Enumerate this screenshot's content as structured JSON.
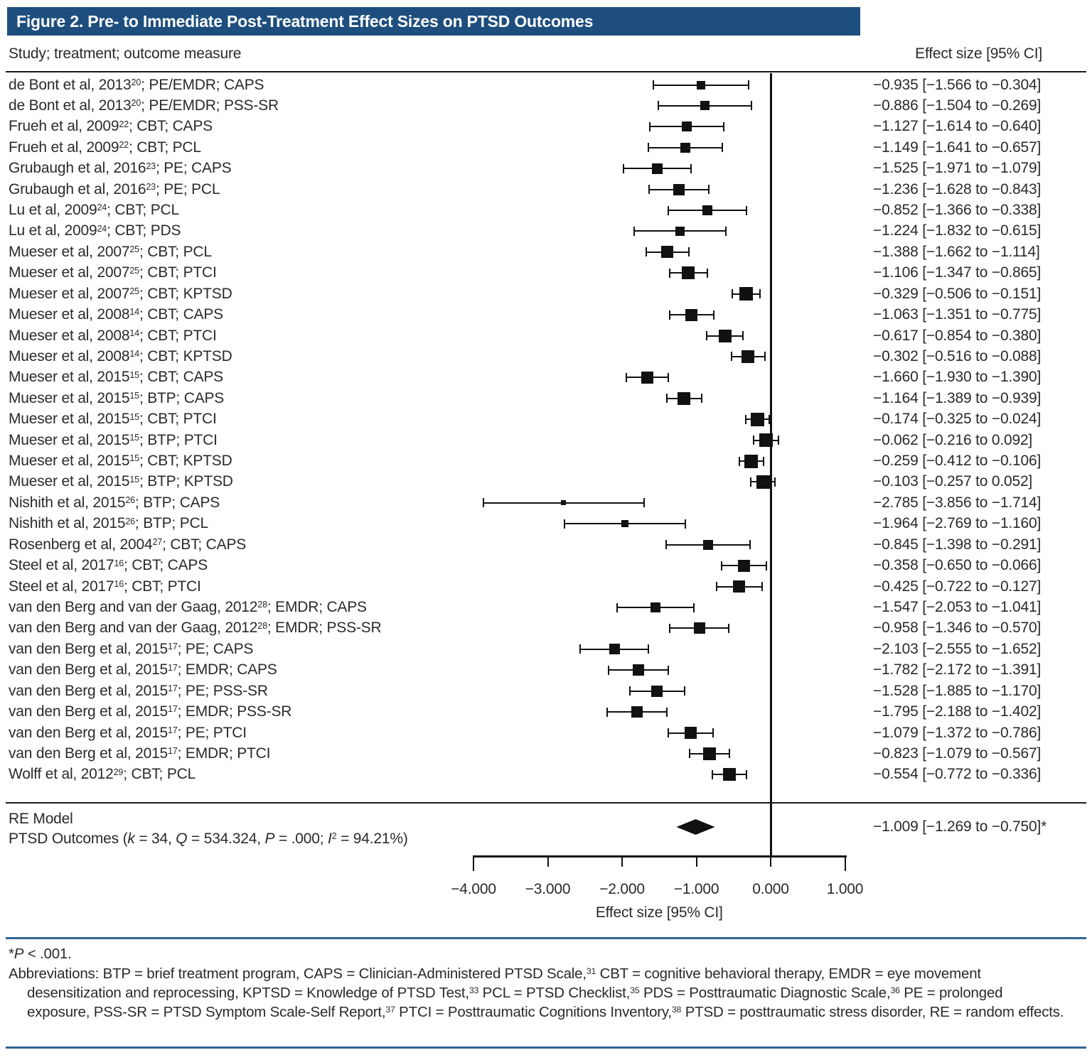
{
  "title": "Figure 2. Pre- to Immediate Post-Treatment Effect Sizes on PTSD Outcomes",
  "header": {
    "left": "Study; treatment; outcome measure",
    "right": "Effect size [95% CI]"
  },
  "colors": {
    "title_bg": "#1d4e7d",
    "rule_blue": "#2f6593",
    "ink": "#2b2a29",
    "plot_black": "#111111"
  },
  "chart_data": {
    "type": "forest",
    "xlabel": "Effect size [95% CI]",
    "x_ticks": [
      -4,
      -3,
      -2,
      -1,
      0,
      1
    ],
    "x_tick_labels": [
      "−4.000",
      "−3.000",
      "−2.000",
      "−1.000",
      "0.000",
      "1.000"
    ],
    "xlim": [
      -4.6,
      1.3
    ],
    "zero_reference_line": 0,
    "studies": [
      {
        "pre": "de Bont et al, 2013",
        "sup": "20",
        "post": "; PE/EMDR; CAPS",
        "est": -0.935,
        "lo": -1.566,
        "hi": -0.304,
        "ci": "−0.935 [−1.566 to −0.304]"
      },
      {
        "pre": "de Bont et al, 2013",
        "sup": "20",
        "post": "; PE/EMDR; PSS-SR",
        "est": -0.886,
        "lo": -1.504,
        "hi": -0.269,
        "ci": "−0.886 [−1.504 to −0.269]"
      },
      {
        "pre": "Frueh et al, 2009",
        "sup": "22",
        "post": "; CBT; CAPS",
        "est": -1.127,
        "lo": -1.614,
        "hi": -0.64,
        "ci": "−1.127 [−1.614 to −0.640]"
      },
      {
        "pre": "Frueh et al, 2009",
        "sup": "22",
        "post": "; CBT; PCL",
        "est": -1.149,
        "lo": -1.641,
        "hi": -0.657,
        "ci": "−1.149 [−1.641 to −0.657]"
      },
      {
        "pre": "Grubaugh et al, 2016",
        "sup": "23",
        "post": "; PE; CAPS",
        "est": -1.525,
        "lo": -1.971,
        "hi": -1.079,
        "ci": "−1.525 [−1.971 to −1.079]"
      },
      {
        "pre": "Grubaugh et al, 2016",
        "sup": "23",
        "post": "; PE; PCL",
        "est": -1.236,
        "lo": -1.628,
        "hi": -0.843,
        "ci": "−1.236 [−1.628 to −0.843]"
      },
      {
        "pre": "Lu et al, 2009",
        "sup": "24",
        "post": "; CBT; PCL",
        "est": -0.852,
        "lo": -1.366,
        "hi": -0.338,
        "ci": "−0.852 [−1.366 to −0.338]"
      },
      {
        "pre": "Lu et al, 2009",
        "sup": "24",
        "post": "; CBT; PDS",
        "est": -1.224,
        "lo": -1.832,
        "hi": -0.615,
        "ci": "−1.224 [−1.832 to −0.615]"
      },
      {
        "pre": "Mueser et al, 2007",
        "sup": "25",
        "post": "; CBT; PCL",
        "est": -1.388,
        "lo": -1.662,
        "hi": -1.114,
        "ci": "−1.388 [−1.662 to −1.114]"
      },
      {
        "pre": "Mueser et al, 2007",
        "sup": "25",
        "post": "; CBT; PTCI",
        "est": -1.106,
        "lo": -1.347,
        "hi": -0.865,
        "ci": "−1.106 [−1.347 to −0.865]"
      },
      {
        "pre": "Mueser et al, 2007",
        "sup": "25",
        "post": "; CBT; KPTSD",
        "est": -0.329,
        "lo": -0.506,
        "hi": -0.151,
        "ci": "−0.329 [−0.506 to −0.151]"
      },
      {
        "pre": "Mueser et al, 2008",
        "sup": "14",
        "post": "; CBT; CAPS",
        "est": -1.063,
        "lo": -1.351,
        "hi": -0.775,
        "ci": "−1.063 [−1.351 to −0.775]"
      },
      {
        "pre": "Mueser et al, 2008",
        "sup": "14",
        "post": "; CBT; PTCI",
        "est": -0.617,
        "lo": -0.854,
        "hi": -0.38,
        "ci": "−0.617 [−0.854 to −0.380]"
      },
      {
        "pre": "Mueser et al, 2008",
        "sup": "14",
        "post": "; CBT; KPTSD",
        "est": -0.302,
        "lo": -0.516,
        "hi": -0.088,
        "ci": "−0.302 [−0.516 to −0.088]"
      },
      {
        "pre": "Mueser et al, 2015",
        "sup": "15",
        "post": "; CBT; CAPS",
        "est": -1.66,
        "lo": -1.93,
        "hi": -1.39,
        "ci": "−1.660 [−1.930 to −1.390]"
      },
      {
        "pre": "Mueser et al, 2015",
        "sup": "15",
        "post": "; BTP; CAPS",
        "est": -1.164,
        "lo": -1.389,
        "hi": -0.939,
        "ci": "−1.164 [−1.389 to −0.939]"
      },
      {
        "pre": "Mueser et al, 2015",
        "sup": "15",
        "post": "; CBT; PTCI",
        "est": -0.174,
        "lo": -0.325,
        "hi": -0.024,
        "ci": "−0.174 [−0.325 to −0.024]"
      },
      {
        "pre": "Mueser et al, 2015",
        "sup": "15",
        "post": "; BTP; PTCI",
        "est": -0.062,
        "lo": -0.216,
        "hi": 0.092,
        "ci": "−0.062 [−0.216 to 0.092]"
      },
      {
        "pre": "Mueser et al, 2015",
        "sup": "15",
        "post": "; CBT; KPTSD",
        "est": -0.259,
        "lo": -0.412,
        "hi": -0.106,
        "ci": "−0.259 [−0.412 to −0.106]"
      },
      {
        "pre": "Mueser et al, 2015",
        "sup": "15",
        "post": "; BTP; KPTSD",
        "est": -0.103,
        "lo": -0.257,
        "hi": 0.052,
        "ci": "−0.103 [−0.257 to 0.052]"
      },
      {
        "pre": "Nishith et al, 2015",
        "sup": "26",
        "post": "; BTP; CAPS",
        "est": -2.785,
        "lo": -3.856,
        "hi": -1.714,
        "ci": "−2.785 [−3.856 to −1.714]"
      },
      {
        "pre": "Nishith et al, 2015",
        "sup": "26",
        "post": "; BTP; PCL",
        "est": -1.964,
        "lo": -2.769,
        "hi": -1.16,
        "ci": "−1.964 [−2.769 to −1.160]"
      },
      {
        "pre": "Rosenberg et al, 2004",
        "sup": "27",
        "post": "; CBT; CAPS",
        "est": -0.845,
        "lo": -1.398,
        "hi": -0.291,
        "ci": "−0.845 [−1.398 to −0.291]"
      },
      {
        "pre": "Steel et al, 2017",
        "sup": "16",
        "post": "; CBT; CAPS",
        "est": -0.358,
        "lo": -0.65,
        "hi": -0.066,
        "ci": "−0.358 [−0.650 to −0.066]"
      },
      {
        "pre": "Steel et al, 2017",
        "sup": "16",
        "post": "; CBT; PTCI",
        "est": -0.425,
        "lo": -0.722,
        "hi": -0.127,
        "ci": "−0.425 [−0.722 to −0.127]"
      },
      {
        "pre": "van den Berg and van der Gaag, 2012",
        "sup": "28",
        "post": "; EMDR; CAPS",
        "est": -1.547,
        "lo": -2.053,
        "hi": -1.041,
        "ci": "−1.547 [−2.053 to −1.041]"
      },
      {
        "pre": "van den Berg and van der Gaag, 2012",
        "sup": "28",
        "post": "; EMDR; PSS-SR",
        "est": -0.958,
        "lo": -1.346,
        "hi": -0.57,
        "ci": "−0.958 [−1.346 to −0.570]"
      },
      {
        "pre": "van den Berg et al, 2015",
        "sup": "17",
        "post": "; PE; CAPS",
        "est": -2.103,
        "lo": -2.555,
        "hi": -1.652,
        "ci": "−2.103 [−2.555 to −1.652]"
      },
      {
        "pre": "van den Berg et al, 2015",
        "sup": "17",
        "post": "; EMDR; CAPS",
        "est": -1.782,
        "lo": -2.172,
        "hi": -1.391,
        "ci": "−1.782 [−2.172 to −1.391]"
      },
      {
        "pre": "van den Berg et al, 2015",
        "sup": "17",
        "post": "; PE; PSS-SR",
        "est": -1.528,
        "lo": -1.885,
        "hi": -1.17,
        "ci": "−1.528 [−1.885 to −1.170]"
      },
      {
        "pre": "van den Berg et al, 2015",
        "sup": "17",
        "post": "; EMDR; PSS-SR",
        "est": -1.795,
        "lo": -2.188,
        "hi": -1.402,
        "ci": "−1.795 [−2.188 to −1.402]"
      },
      {
        "pre": "van den Berg et al, 2015",
        "sup": "17",
        "post": "; PE; PTCI",
        "est": -1.079,
        "lo": -1.372,
        "hi": -0.786,
        "ci": "−1.079 [−1.372 to −0.786]"
      },
      {
        "pre": "van den Berg et al, 2015",
        "sup": "17",
        "post": "; EMDR; PTCI",
        "est": -0.823,
        "lo": -1.079,
        "hi": -0.567,
        "ci": "−0.823 [−1.079 to −0.567]"
      },
      {
        "pre": "Wolff et al, 2012",
        "sup": "29",
        "post": "; CBT; PCL",
        "est": -0.554,
        "lo": -0.772,
        "hi": -0.336,
        "ci": "−0.554 [−0.772 to −0.336]"
      }
    ],
    "summary": {
      "label": "RE Model",
      "est": -1.009,
      "lo": -1.269,
      "hi": -0.75,
      "ci": "−1.009 [−1.269 to −0.750]*",
      "stats_segments": [
        [
          "PTSD Outcomes ("
        ],
        [
          "k",
          "i"
        ],
        [
          " = 34, "
        ],
        [
          "Q",
          "i"
        ],
        [
          " = 534.324, "
        ],
        [
          "P",
          "i"
        ],
        [
          " = .000; "
        ],
        [
          "I",
          "i"
        ],
        [
          "2",
          "sup"
        ],
        [
          " = 94.21%)"
        ]
      ]
    }
  },
  "footnotes": {
    "pvalue_segments": [
      [
        "*"
      ],
      [
        "P",
        "i"
      ],
      [
        " < .001."
      ]
    ],
    "abbreviations_segments": [
      [
        "Abbreviations: BTP = brief treatment program, CAPS = Clinician-Administered PTSD Scale,"
      ],
      [
        "31",
        "sup"
      ],
      [
        " CBT = cognitive behavioral therapy, EMDR = eye movement desensitization and reprocessing, KPTSD = Knowledge of PTSD Test,"
      ],
      [
        "33",
        "sup"
      ],
      [
        " PCL = PTSD Checklist,"
      ],
      [
        "35",
        "sup"
      ],
      [
        " PDS = Posttraumatic Diagnostic Scale,"
      ],
      [
        "36",
        "sup"
      ],
      [
        " PE = prolonged exposure, PSS-SR = PTSD Symptom Scale-Self Report,"
      ],
      [
        "37",
        "sup"
      ],
      [
        " PTCI = Posttraumatic Cognitions Inventory,"
      ],
      [
        "38",
        "sup"
      ],
      [
        " PTSD = posttraumatic stress disorder, RE = random effects."
      ]
    ]
  }
}
